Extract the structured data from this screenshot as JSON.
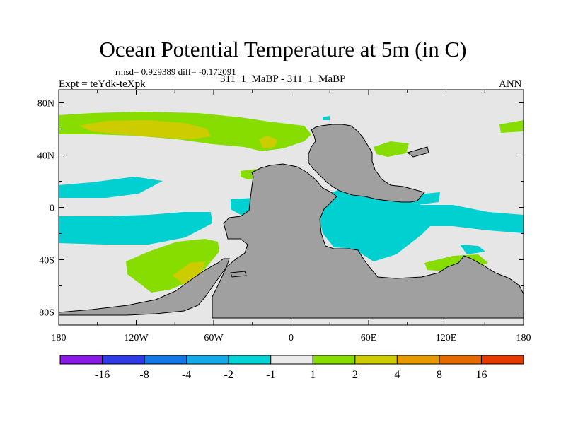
{
  "header": {
    "title": "Ocean Potential Temperature at 5m (in C)",
    "stats": "rmsd= 0.929389 diff= -0.172091",
    "expt": "Expt = teYdk-teXpk",
    "subtitle": "311_1_MaBP - 311_1_MaBP",
    "season": "ANN"
  },
  "map": {
    "lon_range": [
      -180,
      180
    ],
    "lat_range": [
      -90,
      90
    ],
    "y_ticks": [
      {
        "lat": 80,
        "label": "80N"
      },
      {
        "lat": 40,
        "label": "40N"
      },
      {
        "lat": 0,
        "label": "0"
      },
      {
        "lat": -40,
        "label": "40S"
      },
      {
        "lat": -80,
        "label": "80S"
      }
    ],
    "x_ticks": [
      {
        "lon": -180,
        "label": "180"
      },
      {
        "lon": -120,
        "label": "120W"
      },
      {
        "lon": -60,
        "label": "60W"
      },
      {
        "lon": 0,
        "label": "0"
      },
      {
        "lon": 60,
        "label": "60E"
      },
      {
        "lon": 120,
        "label": "120E"
      },
      {
        "lon": 180,
        "label": "180"
      }
    ]
  },
  "colors": {
    "land": "#a0a0a0",
    "neutral": "#e6e6e6",
    "green": "#88dd00",
    "yellow": "#cccc00",
    "cyan": "#00d0d0",
    "lightcyan": "#19c3de"
  },
  "colorbar": {
    "colors": [
      "#8a1ae6",
      "#2f3ce6",
      "#1478e6",
      "#14aae6",
      "#00d4d4",
      "#ebebeb",
      "#88dd00",
      "#cccc00",
      "#e69a00",
      "#e66a00",
      "#e63a00"
    ],
    "labels": [
      "-16",
      "-8",
      "-4",
      "-2",
      "-1",
      "1",
      "2",
      "4",
      "8",
      "16"
    ]
  }
}
